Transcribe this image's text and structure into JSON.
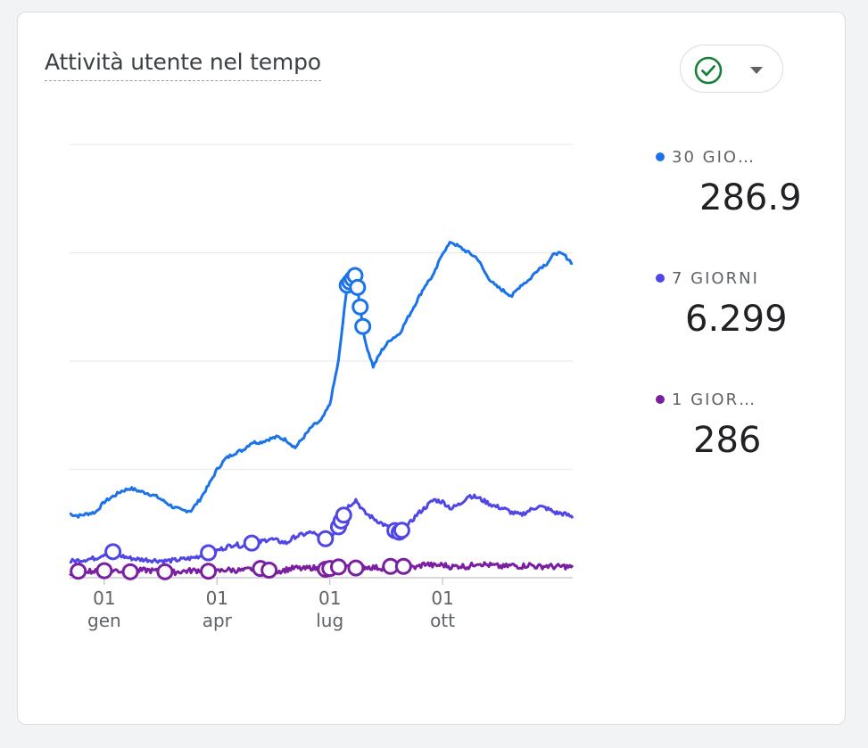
{
  "card": {
    "title": "Attività utente nel tempo"
  },
  "status_button": {
    "icon": "check-circle-icon",
    "dropdown_icon": "caret-down-icon",
    "icon_color": "#188038"
  },
  "legend": [
    {
      "label": "30 GIO…",
      "value": "286.9",
      "color": "#1a73e8"
    },
    {
      "label": "7 GIORNI",
      "value": "6.299",
      "color": "#4f46e5"
    },
    {
      "label": "1 GIOR…",
      "value": "286",
      "color": "#7b1fa2"
    }
  ],
  "chart_data": {
    "type": "line",
    "x_ticks": [
      {
        "day": "01",
        "month": "gen",
        "week": 4
      },
      {
        "day": "01",
        "month": "apr",
        "week": 17
      },
      {
        "day": "01",
        "month": "lug",
        "week": 30
      },
      {
        "day": "01",
        "month": "ott",
        "week": 43
      }
    ],
    "x_range": [
      0,
      58
    ],
    "y_range": [
      0,
      4000
    ],
    "grid": true,
    "legend_position": "right",
    "series": [
      {
        "name": "30 GIORNI",
        "color": "#1a73e8",
        "values": [
          590,
          570,
          590,
          605,
          700,
          750,
          800,
          825,
          800,
          780,
          750,
          700,
          650,
          620,
          620,
          720,
          850,
          1000,
          1100,
          1150,
          1180,
          1250,
          1250,
          1280,
          1300,
          1270,
          1200,
          1300,
          1400,
          1450,
          1600,
          2000,
          2700,
          2800,
          2200,
          1950,
          2100,
          2200,
          2250,
          2400,
          2550,
          2700,
          2800,
          3000,
          3100,
          3050,
          3000,
          2950,
          2800,
          2700,
          2650,
          2600,
          2700,
          2750,
          2850,
          2900,
          3000,
          2980,
          2900
        ]
      },
      {
        "name": "7 GIORNI",
        "color": "#4f46e5",
        "values": [
          150,
          160,
          170,
          180,
          220,
          240,
          200,
          180,
          170,
          165,
          160,
          155,
          160,
          170,
          180,
          200,
          230,
          250,
          280,
          310,
          290,
          320,
          330,
          360,
          340,
          320,
          380,
          400,
          420,
          350,
          370,
          470,
          650,
          720,
          600,
          550,
          500,
          450,
          420,
          480,
          580,
          650,
          720,
          700,
          640,
          680,
          760,
          740,
          700,
          660,
          640,
          600,
          580,
          620,
          660,
          640,
          600,
          590,
          560
        ]
      },
      {
        "name": "1 GIORNO",
        "color": "#7b1fa2",
        "values": [
          40,
          60,
          70,
          55,
          65,
          70,
          60,
          55,
          65,
          70,
          60,
          55,
          50,
          60,
          65,
          70,
          60,
          55,
          75,
          70,
          65,
          80,
          85,
          70,
          60,
          75,
          90,
          80,
          95,
          70,
          85,
          100,
          110,
          90,
          100,
          95,
          90,
          105,
          110,
          100,
          95,
          130,
          110,
          120,
          100,
          110,
          100,
          140,
          120,
          110,
          100,
          115,
          105,
          120,
          100,
          110,
          100,
          105,
          95
        ]
      }
    ]
  }
}
